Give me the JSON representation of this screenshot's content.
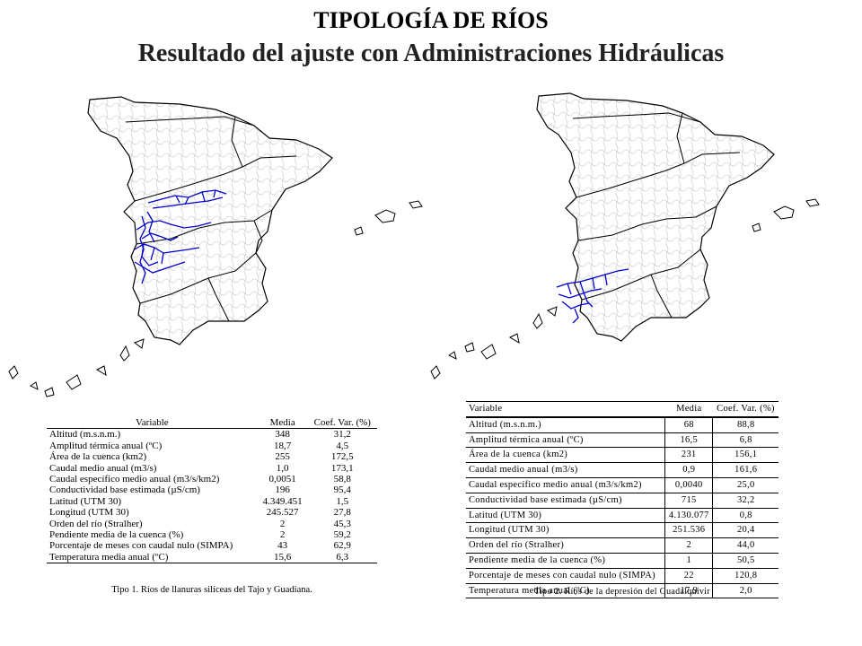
{
  "title": {
    "line1": "TIPOLOGÍA DE RÍOS",
    "line2": "Resultado del ajuste con Administraciones Hidráulicas"
  },
  "colors": {
    "river_highlight": "#0000cc",
    "outline": "#000000",
    "rivers_gray": "#b8b8b8"
  },
  "table1": {
    "headers": [
      "Variable",
      "Media",
      "Coef. Var. (%)"
    ],
    "rows": [
      [
        "Altitud (m.s.n.m.)",
        "348",
        "31,2"
      ],
      [
        "Amplitud térmica anual (ºC)",
        "18,7",
        "4,5"
      ],
      [
        "Área de la cuenca (km2)",
        "255",
        "172,5"
      ],
      [
        "Caudal medio anual (m3/s)",
        "1,0",
        "173,1"
      ],
      [
        "Caudal específico medio anual (m3/s/km2)",
        "0,0051",
        "58,8"
      ],
      [
        "Conductividad base estimada (µS/cm)",
        "196",
        "95,4"
      ],
      [
        "Latitud (UTM 30)",
        "4.349.451",
        "1,5"
      ],
      [
        "Longitud (UTM 30)",
        "245.527",
        "27,8"
      ],
      [
        "Orden del río (Stralher)",
        "2",
        "45,3"
      ],
      [
        "Pendiente media de la cuenca (%)",
        "2",
        "59,2"
      ],
      [
        "Porcentaje de meses con caudal nulo (SIMPA)",
        "43",
        "62,9"
      ],
      [
        "Temperatura media anual (ºC)",
        "15,6",
        "6,3"
      ]
    ],
    "caption": "Tipo 1. Ríos de llanuras silíceas del Tajo y Guadiana."
  },
  "table2": {
    "headers": [
      "Variable",
      "Media",
      "Coef. Var. (%)"
    ],
    "rows": [
      [
        "Altitud (m.s.n.m.)",
        "68",
        "88,8"
      ],
      [
        "Amplitud térmica anual (ºC)",
        "16,5",
        "6,8"
      ],
      [
        "Área de la cuenca (km2)",
        "231",
        "156,1"
      ],
      [
        "Caudal medio anual (m3/s)",
        "0,9",
        "161,6"
      ],
      [
        "Caudal específico medio anual (m3/s/km2)",
        "0,0040",
        "25,0"
      ],
      [
        "Conductividad base estimada (µS/cm)",
        "715",
        "32,2"
      ],
      [
        "Latitud (UTM 30)",
        "4.130.077",
        "0,8"
      ],
      [
        "Longitud (UTM 30)",
        "251.536",
        "20,4"
      ],
      [
        "Orden del río (Stralher)",
        "2",
        "44,0"
      ],
      [
        "Pendiente media de la cuenca (%)",
        "1",
        "50,5"
      ],
      [
        "Porcentaje de meses con caudal nulo (SIMPA)",
        "22",
        "120,8"
      ],
      [
        "Temperatura media anual (ºC)",
        "17,9",
        "2,0"
      ]
    ],
    "caption": "Tipo 2. Ríos de la depresión del Guadalquivir"
  }
}
